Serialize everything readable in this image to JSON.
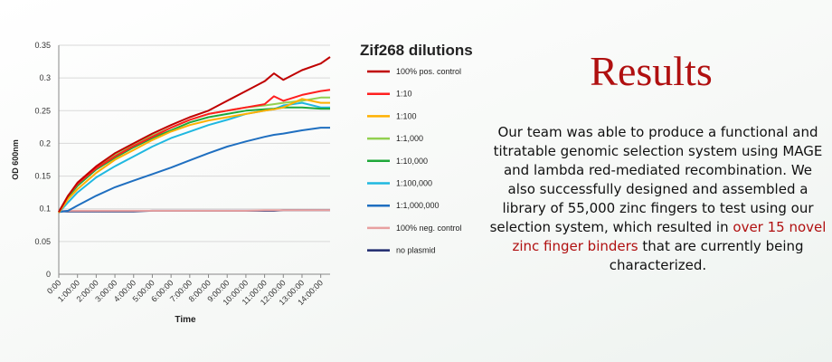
{
  "heading": "Results",
  "paragraph": {
    "before": "Our team was able to produce a functional and titratable genomic selection system using MAGE and lambda red-mediated recombination. We also successfully designed and assembled a library of 55,000 zinc fingers to test using our selection system, which resulted in",
    "highlight": "over 15 novel zinc finger binders",
    "after": "that are currently being characterized."
  },
  "chart_data": {
    "type": "line",
    "title": "Zif268 dilutions",
    "xlabel": "Time",
    "ylabel": "OD 600nm",
    "x": [
      0,
      0.5,
      1,
      2,
      3,
      4,
      5,
      6,
      7,
      8,
      9,
      10,
      11,
      11.5,
      12,
      13,
      14,
      14.5
    ],
    "xlim": [
      0,
      14.5
    ],
    "xticks": [
      {
        "value": 0,
        "label": "0:00"
      },
      {
        "value": 1,
        "label": "1:00:00"
      },
      {
        "value": 2,
        "label": "2:00:00"
      },
      {
        "value": 3,
        "label": "3:00:00"
      },
      {
        "value": 4,
        "label": "4:00:00"
      },
      {
        "value": 5,
        "label": "5:00:00"
      },
      {
        "value": 6,
        "label": "6:00:00"
      },
      {
        "value": 7,
        "label": "7:00:00"
      },
      {
        "value": 8,
        "label": "8:00:00"
      },
      {
        "value": 9,
        "label": "9:00:00"
      },
      {
        "value": 10,
        "label": "10:00:00"
      },
      {
        "value": 11,
        "label": "11:00:00"
      },
      {
        "value": 12,
        "label": "12:00:00"
      },
      {
        "value": 13,
        "label": "13:00:00"
      },
      {
        "value": 14,
        "label": "14:00:00"
      }
    ],
    "ylim": [
      0,
      0.35
    ],
    "yticks": [
      0,
      0.05,
      0.1,
      0.15,
      0.2,
      0.25,
      0.3,
      0.35
    ],
    "grid": true,
    "legend": "right",
    "series": [
      {
        "name": "100% pos. control",
        "color": "#c00000",
        "values": [
          0.095,
          0.12,
          0.14,
          0.165,
          0.185,
          0.2,
          0.215,
          0.228,
          0.24,
          0.25,
          0.265,
          0.28,
          0.295,
          0.307,
          0.297,
          0.312,
          0.322,
          0.332
        ]
      },
      {
        "name": "1:10",
        "color": "#ff1f1f",
        "values": [
          0.095,
          0.12,
          0.138,
          0.162,
          0.18,
          0.196,
          0.21,
          0.224,
          0.236,
          0.245,
          0.25,
          0.255,
          0.26,
          0.272,
          0.265,
          0.274,
          0.28,
          0.282
        ]
      },
      {
        "name": "1:100",
        "color": "#ffb000",
        "values": [
          0.094,
          0.115,
          0.13,
          0.155,
          0.175,
          0.19,
          0.205,
          0.218,
          0.228,
          0.235,
          0.24,
          0.245,
          0.25,
          0.252,
          0.255,
          0.268,
          0.262,
          0.262
        ]
      },
      {
        "name": "1:1,000",
        "color": "#92d050",
        "values": [
          0.095,
          0.12,
          0.138,
          0.163,
          0.182,
          0.198,
          0.212,
          0.224,
          0.236,
          0.245,
          0.25,
          0.255,
          0.258,
          0.26,
          0.262,
          0.265,
          0.27,
          0.27
        ]
      },
      {
        "name": "1:10,000",
        "color": "#1fa83a",
        "values": [
          0.094,
          0.118,
          0.135,
          0.16,
          0.178,
          0.194,
          0.208,
          0.22,
          0.232,
          0.24,
          0.245,
          0.25,
          0.252,
          0.253,
          0.255,
          0.255,
          0.253,
          0.253
        ]
      },
      {
        "name": "1:100,000",
        "color": "#1fb8e0",
        "values": [
          0.094,
          0.11,
          0.125,
          0.148,
          0.165,
          0.18,
          0.195,
          0.208,
          0.218,
          0.228,
          0.236,
          0.245,
          0.25,
          0.252,
          0.258,
          0.262,
          0.255,
          0.255
        ]
      },
      {
        "name": "1:1,000,000",
        "color": "#1f6fc0",
        "values": [
          0.095,
          0.097,
          0.105,
          0.12,
          0.133,
          0.143,
          0.153,
          0.163,
          0.174,
          0.185,
          0.195,
          0.203,
          0.21,
          0.213,
          0.215,
          0.22,
          0.224,
          0.224
        ]
      },
      {
        "name": "100% neg. control",
        "color": "#e8a0a0",
        "values": [
          0.097,
          0.097,
          0.097,
          0.097,
          0.097,
          0.097,
          0.097,
          0.097,
          0.097,
          0.097,
          0.097,
          0.097,
          0.098,
          0.098,
          0.098,
          0.098,
          0.098,
          0.098
        ]
      },
      {
        "name": "no plasmid",
        "color": "#1f2a6e",
        "values": [
          0.096,
          0.096,
          0.096,
          0.096,
          0.096,
          0.096,
          0.097,
          0.097,
          0.097,
          0.097,
          0.097,
          0.097,
          0.097,
          0.097,
          0.098,
          0.098,
          0.098,
          0.098
        ]
      }
    ]
  }
}
